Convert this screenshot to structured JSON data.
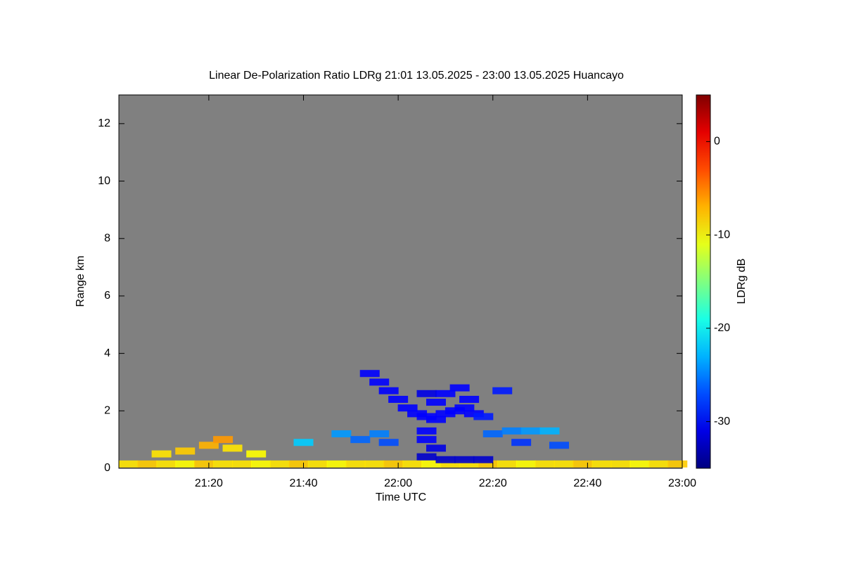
{
  "chart_data": {
    "type": "heatmap",
    "title": "Linear De-Polarization Ratio LDRg   21:01 13.05.2025 - 23:00 13.05.2025 Huancayo",
    "x_label": "Time UTC",
    "y_label": "Range km",
    "colorbar_label": "LDRg dB",
    "xlim": [
      1261,
      1380
    ],
    "xticks": [
      {
        "value": 1280,
        "label": "21:20"
      },
      {
        "value": 1300,
        "label": "21:40"
      },
      {
        "value": 1320,
        "label": "22:00"
      },
      {
        "value": 1340,
        "label": "22:20"
      },
      {
        "value": 1360,
        "label": "22:40"
      },
      {
        "value": 1380,
        "label": "23:00"
      }
    ],
    "ylim": [
      0,
      13
    ],
    "yticks": [
      0,
      2,
      4,
      6,
      8,
      10,
      12
    ],
    "zlim": [
      -35,
      5
    ],
    "zticks": [
      0,
      -10,
      -20,
      -30
    ],
    "background": "#808080",
    "x": [
      1263,
      1267,
      1271,
      1275,
      1279,
      1283,
      1287,
      1291,
      1295,
      1299,
      1303,
      1307,
      1311,
      1315,
      1319,
      1323,
      1327,
      1331,
      1335,
      1339,
      1343,
      1347,
      1351,
      1355,
      1359,
      1363,
      1367,
      1371,
      1375,
      1379,
      1270,
      1275,
      1280,
      1283,
      1285,
      1290,
      1314,
      1316,
      1318,
      1320,
      1322,
      1324,
      1326,
      1328,
      1330,
      1332,
      1334,
      1336,
      1328,
      1330,
      1326,
      1333,
      1335,
      1338,
      1342,
      1326,
      1330,
      1334,
      1338,
      1328,
      1326,
      1326,
      1300,
      1308,
      1312,
      1316,
      1318,
      1340,
      1344,
      1348,
      1352,
      1346,
      1354
    ],
    "y": [
      0.15,
      0.15,
      0.15,
      0.15,
      0.15,
      0.15,
      0.15,
      0.15,
      0.15,
      0.15,
      0.15,
      0.15,
      0.15,
      0.15,
      0.15,
      0.15,
      0.15,
      0.15,
      0.15,
      0.15,
      0.15,
      0.15,
      0.15,
      0.15,
      0.15,
      0.15,
      0.15,
      0.15,
      0.15,
      0.15,
      0.5,
      0.6,
      0.8,
      1.0,
      0.7,
      0.5,
      3.3,
      3.0,
      2.7,
      2.4,
      2.1,
      1.9,
      1.8,
      1.7,
      1.9,
      2.0,
      2.1,
      1.9,
      2.3,
      2.6,
      2.6,
      2.8,
      2.4,
      1.8,
      2.7,
      0.4,
      0.3,
      0.3,
      0.3,
      0.7,
      1.0,
      1.3,
      0.9,
      1.2,
      1.0,
      1.2,
      0.9,
      1.2,
      1.3,
      1.3,
      1.3,
      0.9,
      0.8
    ],
    "values": [
      -9,
      -8,
      -9,
      -10,
      -8,
      -9,
      -9,
      -10,
      -9,
      -8,
      -9,
      -10,
      -9,
      -9,
      -8,
      -9,
      -10,
      -9,
      -9,
      -8,
      -9,
      -10,
      -9,
      -9,
      -8,
      -9,
      -9,
      -10,
      -9,
      -8,
      -9,
      -8,
      -7,
      -6,
      -9,
      -10,
      -30,
      -30,
      -30,
      -30,
      -30,
      -30,
      -30,
      -30,
      -30,
      -30,
      -30,
      -30,
      -30,
      -30,
      -31,
      -30,
      -30,
      -29,
      -29,
      -32,
      -32,
      -32,
      -32,
      -31,
      -30,
      -30,
      -22,
      -24,
      -26,
      -25,
      -27,
      -26,
      -25,
      -24,
      -23,
      -28,
      -27
    ]
  }
}
